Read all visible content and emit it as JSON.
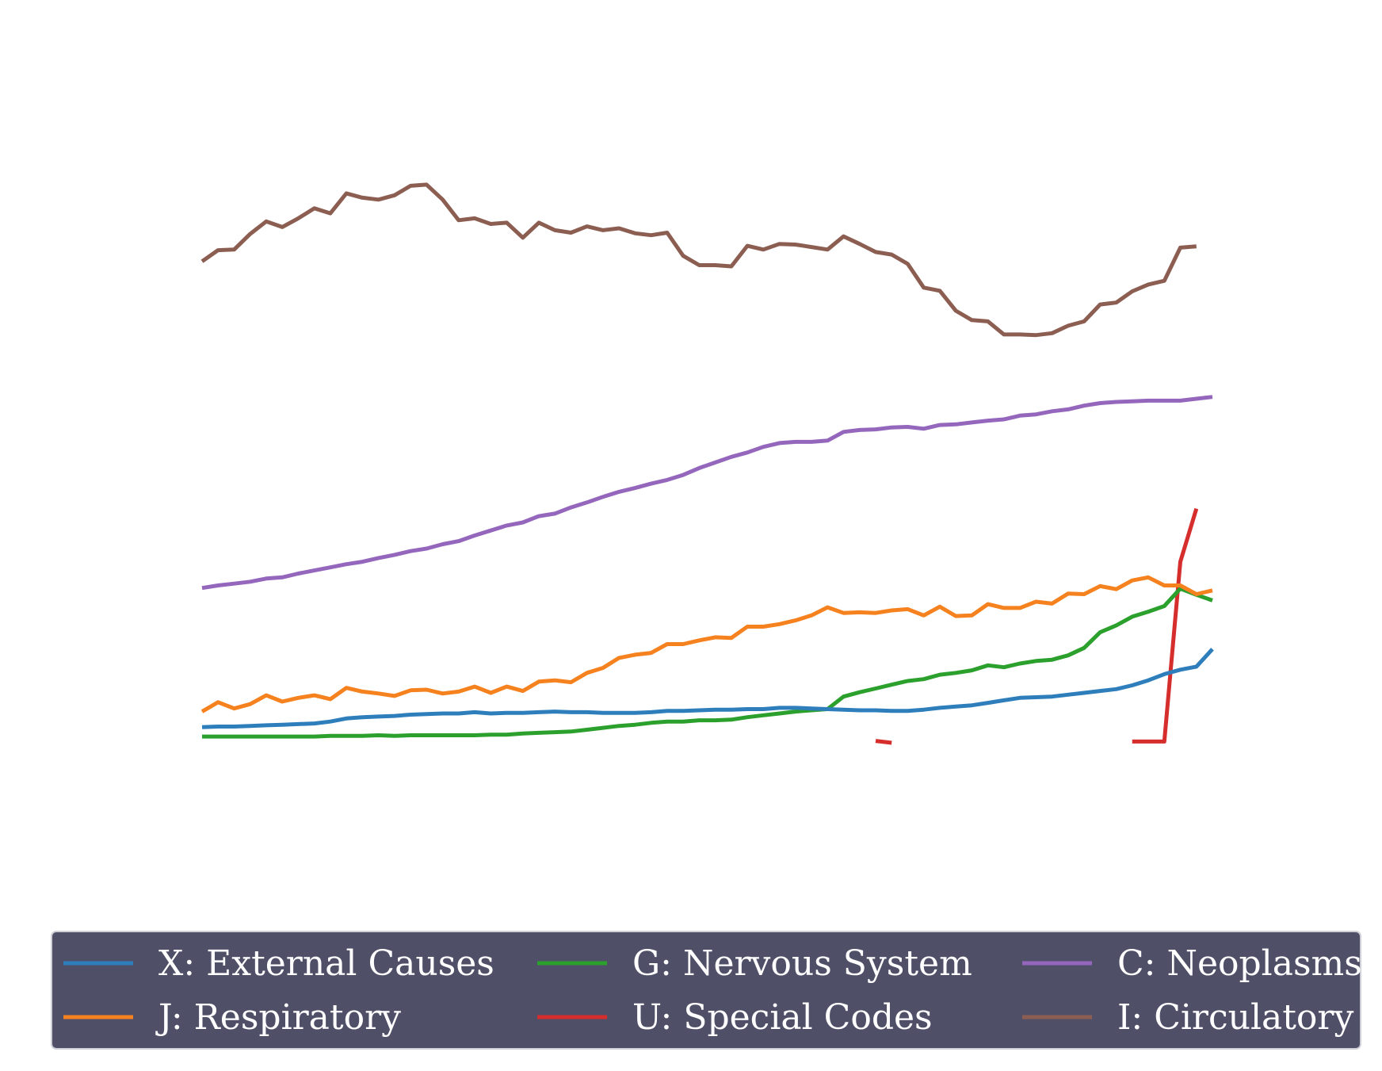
{
  "chart_data": {
    "type": "line",
    "title": "",
    "xlabel": "",
    "ylabel": "",
    "grid": false,
    "axes_visible": false,
    "n_points": 64,
    "x_index_range": [
      0,
      63
    ],
    "ylim": [
      -5,
      108
    ],
    "legend": {
      "placement": "bottom",
      "columns": 3,
      "background": "#4f4f68",
      "text_color": "#ffffff"
    },
    "series": [
      {
        "name": "X: External Causes",
        "color": "#2e7ebc",
        "values": [
          5.5,
          5.6,
          5.6,
          5.7,
          5.8,
          5.9,
          6.0,
          6.1,
          6.4,
          6.9,
          7.1,
          7.2,
          7.3,
          7.5,
          7.6,
          7.7,
          7.7,
          7.9,
          7.7,
          7.8,
          7.8,
          7.9,
          8.0,
          7.9,
          7.9,
          7.8,
          7.8,
          7.8,
          7.9,
          8.1,
          8.1,
          8.2,
          8.3,
          8.3,
          8.4,
          8.4,
          8.6,
          8.6,
          8.5,
          8.4,
          8.3,
          8.2,
          8.2,
          8.1,
          8.1,
          8.3,
          8.6,
          8.8,
          9.0,
          9.4,
          9.8,
          10.2,
          10.3,
          10.4,
          10.7,
          11.0,
          11.3,
          11.6,
          12.2,
          13.0,
          14.0,
          14.7,
          15.2,
          18.0
        ]
      },
      {
        "name": "J: Respiratory",
        "color": "#f5821f",
        "values": [
          8.0,
          9.5,
          8.5,
          9.2,
          10.6,
          9.6,
          10.2,
          10.6,
          10.0,
          11.8,
          11.2,
          10.9,
          10.5,
          11.4,
          11.5,
          10.9,
          11.2,
          12.0,
          11.0,
          12.0,
          11.3,
          12.8,
          13.0,
          12.7,
          14.2,
          15.0,
          16.6,
          17.1,
          17.4,
          18.8,
          18.8,
          19.4,
          19.9,
          19.8,
          21.6,
          21.6,
          22.0,
          22.6,
          23.4,
          24.7,
          23.8,
          23.9,
          23.8,
          24.2,
          24.4,
          23.4,
          24.8,
          23.3,
          23.4,
          25.2,
          24.6,
          24.6,
          25.6,
          25.3,
          26.9,
          26.8,
          28.1,
          27.6,
          29.0,
          29.5,
          28.2,
          28.2,
          26.8,
          27.4
        ]
      },
      {
        "name": "G: Nervous System",
        "color": "#2ca02c",
        "values": [
          4.0,
          4.0,
          4.0,
          4.0,
          4.0,
          4.0,
          4.0,
          4.0,
          4.1,
          4.1,
          4.1,
          4.2,
          4.1,
          4.2,
          4.2,
          4.2,
          4.2,
          4.2,
          4.3,
          4.3,
          4.5,
          4.6,
          4.7,
          4.8,
          5.1,
          5.4,
          5.7,
          5.9,
          6.2,
          6.4,
          6.4,
          6.6,
          6.6,
          6.7,
          7.1,
          7.4,
          7.7,
          8.0,
          8.2,
          8.4,
          10.4,
          11.1,
          11.7,
          12.3,
          12.9,
          13.2,
          13.9,
          14.2,
          14.6,
          15.4,
          15.1,
          15.7,
          16.1,
          16.3,
          17.0,
          18.2,
          20.7,
          21.8,
          23.2,
          24.0,
          24.9,
          27.7,
          26.7,
          25.8
        ]
      },
      {
        "name": "U: Special Codes",
        "color": "#d62d2d",
        "values": [
          null,
          null,
          null,
          null,
          null,
          null,
          null,
          null,
          null,
          null,
          null,
          null,
          null,
          null,
          null,
          null,
          null,
          null,
          null,
          null,
          null,
          null,
          null,
          null,
          null,
          null,
          null,
          null,
          null,
          null,
          null,
          null,
          null,
          null,
          null,
          null,
          null,
          null,
          null,
          null,
          null,
          null,
          3.3,
          3.0,
          null,
          null,
          null,
          null,
          null,
          null,
          null,
          null,
          null,
          null,
          null,
          null,
          null,
          null,
          3.2,
          3.2,
          3.2,
          32.0,
          40.5,
          null
        ]
      },
      {
        "name": "C: Neoplasms",
        "color": "#9467bd",
        "values": [
          27.8,
          28.2,
          28.5,
          28.8,
          29.3,
          29.5,
          30.1,
          30.6,
          31.1,
          31.6,
          32.0,
          32.6,
          33.1,
          33.7,
          34.1,
          34.8,
          35.3,
          36.2,
          37.0,
          37.8,
          38.3,
          39.3,
          39.7,
          40.7,
          41.5,
          42.4,
          43.2,
          43.8,
          44.5,
          45.1,
          45.9,
          47.0,
          47.9,
          48.8,
          49.5,
          50.4,
          51.0,
          51.2,
          51.2,
          51.4,
          52.8,
          53.1,
          53.2,
          53.5,
          53.6,
          53.3,
          53.9,
          54.0,
          54.3,
          54.6,
          54.8,
          55.4,
          55.6,
          56.1,
          56.4,
          57.0,
          57.4,
          57.6,
          57.7,
          57.8,
          57.8,
          57.8,
          58.1,
          58.4
        ]
      },
      {
        "name": "I: Circulatory",
        "color": "#8c5e52",
        "values": [
          80.1,
          81.9,
          82.0,
          84.5,
          86.5,
          85.6,
          87.0,
          88.6,
          87.8,
          91.0,
          90.3,
          90.0,
          90.7,
          92.2,
          92.4,
          90.0,
          86.7,
          87.0,
          86.1,
          86.3,
          83.9,
          86.3,
          85.1,
          84.7,
          85.7,
          85.1,
          85.4,
          84.6,
          84.3,
          84.7,
          81.0,
          79.5,
          79.5,
          79.3,
          82.6,
          82.0,
          82.9,
          82.8,
          82.4,
          82.0,
          84.1,
          82.9,
          81.6,
          81.2,
          79.7,
          75.9,
          75.4,
          72.2,
          70.7,
          70.5,
          68.4,
          68.4,
          68.3,
          68.6,
          69.8,
          70.5,
          73.2,
          73.5,
          75.3,
          76.4,
          77.0,
          82.3,
          82.5,
          null
        ]
      }
    ]
  }
}
